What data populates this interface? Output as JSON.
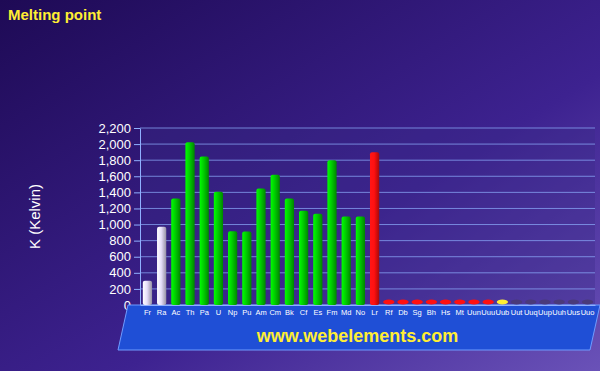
{
  "chart_data": {
    "type": "bar",
    "title": "Melting point",
    "y_label": "K (Kelvin)",
    "annotation": "www.webelements.com",
    "categories": [
      "Fr",
      "Ra",
      "Ac",
      "Th",
      "Pa",
      "U",
      "Np",
      "Pu",
      "Am",
      "Cm",
      "Bk",
      "Cf",
      "Es",
      "Fm",
      "Md",
      "No",
      "Lr",
      "Rf",
      "Db",
      "Sg",
      "Bh",
      "Hs",
      "Mt",
      "Uun",
      "Uuu",
      "Uub",
      "Uut",
      "Uuq",
      "Uup",
      "Uuh",
      "Uus",
      "Uuo"
    ],
    "values": [
      300,
      973,
      1323,
      2023,
      1845,
      1408,
      917,
      913,
      1449,
      1618,
      1323,
      1173,
      1133,
      1800,
      1100,
      1100,
      1900,
      null,
      null,
      null,
      null,
      null,
      null,
      null,
      null,
      null,
      null,
      null,
      null,
      null,
      null,
      null
    ],
    "colors": [
      "#e6defa",
      "#e6defa",
      "#00cc00",
      "#00cc00",
      "#00cc00",
      "#00cc00",
      "#00cc00",
      "#00cc00",
      "#00cc00",
      "#00cc00",
      "#00cc00",
      "#00cc00",
      "#00cc00",
      "#00cc00",
      "#00cc00",
      "#00cc00",
      "#ff1010",
      "#ff1010",
      "#ff1010",
      "#ff1010",
      "#ff1010",
      "#ff1010",
      "#ff1010",
      "#ff1010",
      "#ff1010",
      "#ffee33",
      "#4a3a7a",
      "#4a3a7a",
      "#4a3a7a",
      "#4a3a7a",
      "#4a3a7a",
      "#4a3a7a"
    ],
    "ylim": [
      0,
      2200
    ],
    "yticks": [
      0,
      200,
      400,
      600,
      800,
      {
        "value": 1000,
        "label": "1,000"
      },
      {
        "value": 1200,
        "label": "1,200"
      },
      {
        "value": 1400,
        "label": "1,400"
      },
      {
        "value": 1600,
        "label": "1,600"
      },
      {
        "value": 1800,
        "label": "1,800"
      },
      {
        "value": 2000,
        "label": "2,000"
      },
      {
        "value": 2200,
        "label": "2,200"
      }
    ],
    "grid": true
  }
}
